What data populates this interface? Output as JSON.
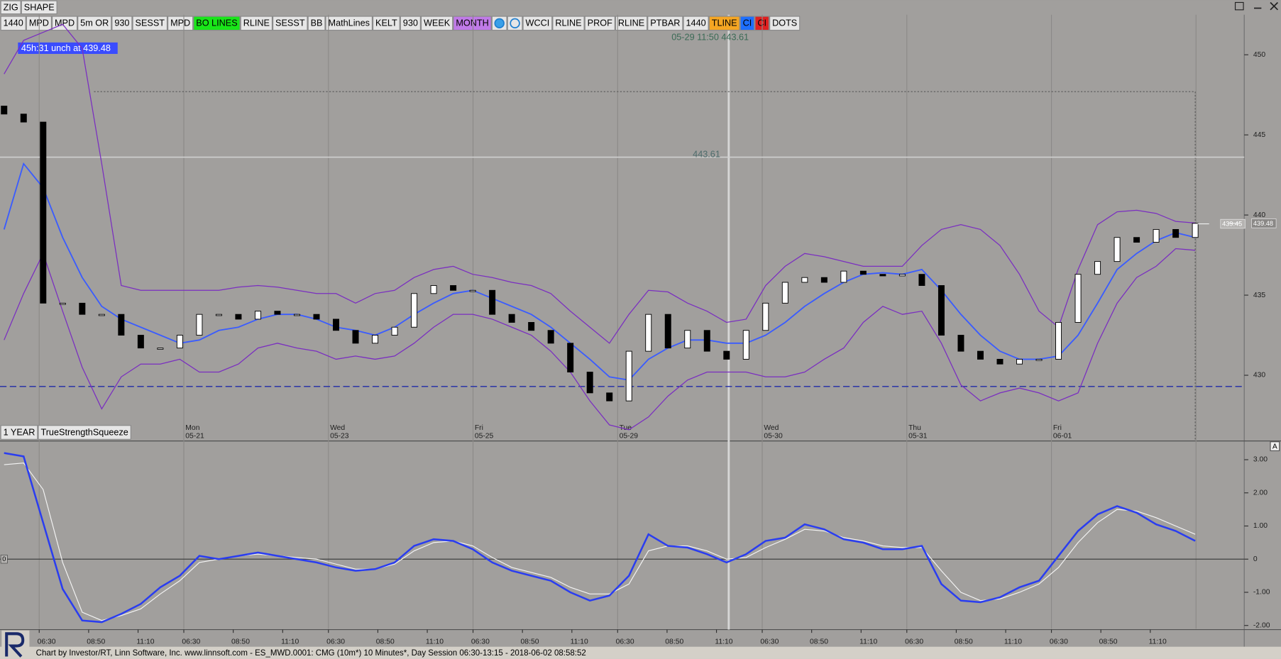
{
  "top_buttons": [
    "ZIG",
    "SHAPE"
  ],
  "toolbar": [
    {
      "label": "1440"
    },
    {
      "label": "MPD"
    },
    {
      "label": "MPD"
    },
    {
      "label": "5m OR"
    },
    {
      "label": "930"
    },
    {
      "label": "SESST"
    },
    {
      "label": "MPD"
    },
    {
      "label": "BO LINES",
      "color": "#19e619"
    },
    {
      "label": "RLINE"
    },
    {
      "label": "SESST"
    },
    {
      "label": "BB"
    },
    {
      "label": "MathLines"
    },
    {
      "label": "KELT"
    },
    {
      "label": "930"
    },
    {
      "label": "WEEK"
    },
    {
      "label": "MONTH",
      "color": "#c07ae8"
    },
    {
      "label": "WCCI"
    },
    {
      "label": "RLINE"
    },
    {
      "label": "PROF"
    },
    {
      "label": "RLINE"
    },
    {
      "label": "PTBAR"
    },
    {
      "label": "1440"
    },
    {
      "label": "TLINE",
      "color": "#f5a623"
    },
    {
      "label": "CI",
      "color": "#1e6fff"
    },
    {
      "label": "CI",
      "color": "#e02020"
    },
    {
      "label": "DOTS"
    }
  ],
  "info_box": "45h:31  unch at 439.48",
  "cursor_label": "05-29 11:50 443.61",
  "price_panel": {
    "type": "candlestick",
    "ylim": [
      425.9,
      452.5
    ],
    "yticks": [
      430,
      435,
      440,
      445,
      450
    ],
    "open": [
      446.8,
      446.3,
      445.8,
      434.5,
      434.5,
      433.8,
      433.8,
      432.5,
      431.7,
      431.7,
      432.5,
      433.8,
      433.8,
      433.5,
      434.0,
      433.8,
      433.8,
      433.5,
      432.8,
      432.0,
      432.5,
      433.0,
      435.1,
      435.6,
      435.3,
      435.3,
      433.8,
      433.3,
      432.8,
      432.0,
      430.2,
      428.9,
      428.4,
      431.5,
      433.8,
      431.7,
      432.8,
      431.5,
      431.0,
      432.8,
      434.5,
      435.8,
      436.1,
      435.8,
      436.5,
      436.3,
      436.2,
      436.3,
      435.6,
      432.5,
      431.5,
      431.0,
      430.7,
      431.0,
      431.0,
      433.3,
      436.3,
      437.1,
      438.6,
      438.3,
      439.1,
      438.6
    ],
    "close": [
      446.3,
      445.8,
      434.5,
      434.5,
      433.8,
      433.8,
      432.5,
      431.7,
      431.7,
      432.5,
      433.8,
      433.8,
      433.5,
      434.0,
      433.8,
      433.8,
      433.5,
      432.8,
      432.0,
      432.5,
      433.0,
      435.1,
      435.6,
      435.3,
      435.3,
      433.8,
      433.3,
      432.8,
      432.0,
      430.2,
      428.9,
      428.4,
      431.5,
      433.8,
      431.7,
      432.8,
      431.5,
      431.0,
      432.8,
      434.5,
      435.8,
      436.1,
      435.8,
      436.5,
      436.3,
      436.2,
      436.3,
      435.6,
      432.5,
      431.5,
      431.0,
      430.7,
      431.0,
      431.0,
      433.3,
      436.3,
      437.1,
      438.6,
      438.3,
      439.1,
      438.6,
      439.48
    ],
    "bb_upper": {
      "color": "#7a2ec0",
      "values": [
        448.8,
        450.9,
        451.4,
        451.9,
        450.4,
        443.2,
        435.6,
        435.3,
        435.3,
        435.3,
        435.3,
        435.3,
        435.5,
        435.6,
        435.5,
        435.3,
        435.1,
        435.1,
        434.5,
        435.1,
        435.3,
        436.1,
        436.6,
        436.8,
        436.3,
        436.1,
        435.8,
        435.6,
        435.1,
        434.0,
        433.0,
        432.0,
        433.8,
        435.3,
        435.2,
        434.5,
        434.0,
        433.3,
        433.5,
        435.6,
        436.8,
        437.6,
        437.4,
        437.1,
        436.8,
        436.8,
        436.8,
        438.1,
        439.1,
        439.4,
        439.1,
        438.1,
        436.3,
        434.0,
        433.0,
        436.6,
        439.4,
        440.2,
        440.3,
        440.1,
        439.6,
        439.5
      ]
    },
    "bb_middle": {
      "color": "#3a5cff",
      "values": [
        439.1,
        443.2,
        441.7,
        438.6,
        436.1,
        434.3,
        433.5,
        433.0,
        432.5,
        432.0,
        432.2,
        432.8,
        433.0,
        433.5,
        433.8,
        433.8,
        433.5,
        433.0,
        432.8,
        432.5,
        433.0,
        433.8,
        434.5,
        435.1,
        435.3,
        434.8,
        434.3,
        433.8,
        433.0,
        432.0,
        431.0,
        429.9,
        429.7,
        431.0,
        431.7,
        432.2,
        432.2,
        432.0,
        432.0,
        432.5,
        433.3,
        434.3,
        435.1,
        435.8,
        436.3,
        436.4,
        436.3,
        436.6,
        435.3,
        433.8,
        432.5,
        431.5,
        431.0,
        431.0,
        431.2,
        432.5,
        434.5,
        436.6,
        437.6,
        438.4,
        438.9,
        438.6
      ]
    },
    "bb_lower": {
      "color": "#7a2ec0",
      "values": [
        432.2,
        435.1,
        437.6,
        434.0,
        430.5,
        427.9,
        429.9,
        430.7,
        430.7,
        431.0,
        430.2,
        430.2,
        430.7,
        431.7,
        432.0,
        431.7,
        431.5,
        431.0,
        431.2,
        431.0,
        431.2,
        432.0,
        433.0,
        433.8,
        433.8,
        433.5,
        433.0,
        432.5,
        431.5,
        430.2,
        428.4,
        426.9,
        426.6,
        427.4,
        428.7,
        429.7,
        430.2,
        430.2,
        430.2,
        429.9,
        429.9,
        430.2,
        431.0,
        431.7,
        433.3,
        434.3,
        433.8,
        434.0,
        432.0,
        429.4,
        428.4,
        428.9,
        429.2,
        428.9,
        428.4,
        428.9,
        432.0,
        434.5,
        436.1,
        436.8,
        437.9,
        437.8
      ]
    },
    "level_line": 443.61,
    "support_line": 429.3,
    "box_top": 447.7,
    "price_tags": [
      439.45,
      439.48
    ],
    "day_labels": [
      {
        "day": "Mon",
        "date": "05-21"
      },
      {
        "day": "Wed",
        "date": "05-23"
      },
      {
        "day": "Fri",
        "date": "05-25"
      },
      {
        "day": "Tue",
        "date": "05-29"
      },
      {
        "day": "Wed",
        "date": "05-30"
      },
      {
        "day": "Thu",
        "date": "05-31"
      },
      {
        "day": "Fri",
        "date": "06-01"
      }
    ]
  },
  "panel_tabs": [
    "1 YEAR",
    "TrueStrengthSqueeze"
  ],
  "indicator_panel": {
    "type": "line",
    "ylim": [
      -2.1,
      3.54
    ],
    "marker": "A",
    "yticks": [
      {
        "value": 3,
        "label": "3.00"
      },
      {
        "value": 2,
        "label": "2.00"
      },
      {
        "value": 1,
        "label": "1.00"
      },
      0,
      {
        "value": -1,
        "label": "-1.00"
      },
      {
        "value": -2,
        "label": "-2.00"
      }
    ],
    "series": [
      {
        "color": "#2a3df0",
        "values": [
          3.2,
          3.1,
          1.1,
          -0.9,
          -1.85,
          -1.9,
          -1.65,
          -1.35,
          -0.85,
          -0.5,
          0.1,
          0.0,
          0.1,
          0.2,
          0.1,
          0.0,
          -0.1,
          -0.25,
          -0.35,
          -0.3,
          -0.1,
          0.4,
          0.6,
          0.55,
          0.3,
          -0.1,
          -0.35,
          -0.5,
          -0.65,
          -1.0,
          -1.25,
          -1.1,
          -0.5,
          0.75,
          0.4,
          0.35,
          0.15,
          -0.1,
          0.15,
          0.55,
          0.65,
          1.05,
          0.9,
          0.6,
          0.5,
          0.3,
          0.3,
          0.4,
          -0.75,
          -1.25,
          -1.3,
          -1.15,
          -0.85,
          -0.65,
          0.1,
          0.85,
          1.35,
          1.6,
          1.4,
          1.05,
          0.85,
          0.55
        ]
      },
      {
        "color": "#f4f4f4",
        "values": [
          2.85,
          2.9,
          2.1,
          -0.1,
          -1.6,
          -1.85,
          -1.7,
          -1.5,
          -1.05,
          -0.65,
          -0.1,
          0.0,
          0.1,
          0.15,
          0.1,
          0.05,
          0.0,
          -0.15,
          -0.3,
          -0.3,
          -0.15,
          0.25,
          0.5,
          0.55,
          0.4,
          0.05,
          -0.25,
          -0.4,
          -0.55,
          -0.85,
          -1.05,
          -1.05,
          -0.75,
          0.25,
          0.4,
          0.4,
          0.25,
          0.0,
          0.05,
          0.35,
          0.6,
          0.9,
          0.85,
          0.65,
          0.55,
          0.4,
          0.35,
          0.35,
          -0.35,
          -1.0,
          -1.25,
          -1.2,
          -1.0,
          -0.75,
          -0.25,
          0.5,
          1.1,
          1.5,
          1.45,
          1.25,
          1.0,
          0.75
        ]
      }
    ]
  },
  "time_labels": [
    "06:30",
    "08:50",
    "11:10",
    "06:30",
    "08:50",
    "11:10",
    "06:30",
    "08:50",
    "11:10",
    "06:30",
    "08:50",
    "11:10",
    "06:30",
    "08:50",
    "11:10",
    "06:30",
    "08:50",
    "11:10",
    "06:30",
    "08:50",
    "11:10",
    "06:30",
    "08:50",
    "11:10"
  ],
  "status_bar": "Chart by Investor/RT, Linn Software, Inc. www.linnsoft.com - ES_MWD.0001: CMG (10m*) 10 Minutes*, Day Session 06:30-13:15 - 2018-06-02 08:58:52"
}
